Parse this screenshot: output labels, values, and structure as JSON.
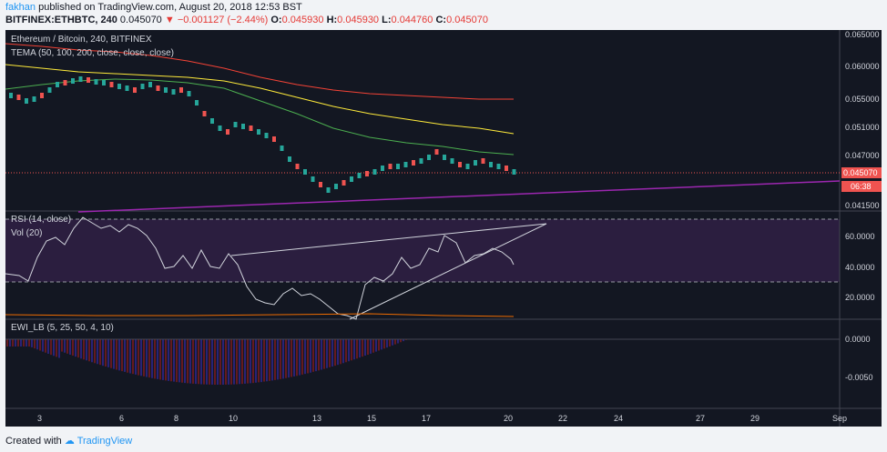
{
  "header": {
    "user": "fakhan",
    "published": "published on TradingView.com, August 20, 2018 12:53 BST",
    "symbol_line": "BITFINEX:ETHBTC, 240",
    "last": "0.045070",
    "change": "−0.001127 (−2.44%)",
    "open_label": "O:",
    "open": "0.045930",
    "high_label": "H:",
    "high": "0.045930",
    "low_label": "L:",
    "low": "0.044760",
    "close_label": "C:",
    "close": "0.045070"
  },
  "panes": {
    "main_title": "Ethereum / Bitcoin, 240, BITFINEX",
    "main_indicator": "TEMA (50, 100, 200, close, close, close)",
    "rsi_title": "RSI (14, close)",
    "vol_title": "Vol (20)",
    "ewi_title": "EWI_LB (5, 25, 50, 4, 10)"
  },
  "price_axis": [
    "0.065000",
    "0.060000",
    "0.055000",
    "0.051000",
    "0.047000",
    "0.041500"
  ],
  "price_tag": "0.045070",
  "time_tag": "06:38",
  "rsi_axis": [
    "60.0000",
    "40.0000",
    "20.0000"
  ],
  "ewi_axis": [
    "0.0000",
    "-0.0050"
  ],
  "time_axis": [
    "3",
    "6",
    "8",
    "10",
    "13",
    "15",
    "17",
    "20",
    "22",
    "24",
    "27",
    "29",
    "Sep"
  ],
  "footer": {
    "created": "Created with",
    "brand": "TradingView"
  },
  "colors": {
    "bg": "#131722",
    "up": "#26a69a",
    "down": "#ef5350",
    "tema50": "#4caf50",
    "tema100": "#ffeb3b",
    "tema200": "#f44336",
    "trend": "#9c27b0",
    "rsi_fill": "#2b1e3f"
  }
}
